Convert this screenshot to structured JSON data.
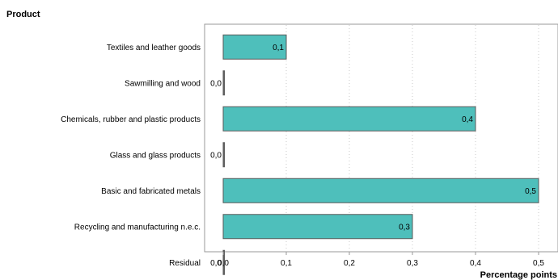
{
  "chart_data": {
    "type": "bar",
    "orientation": "horizontal",
    "y_title": "Product",
    "x_title": "Percentage points",
    "categories": [
      "Textiles and leather goods",
      "Sawmilling and wood",
      "Chemicals, rubber and plastic products",
      "Glass and glass products",
      "Basic and fabricated metals",
      "Recycling and manufacturing n.e.c.",
      "Residual"
    ],
    "values": [
      0.1,
      0.0,
      0.4,
      0.0,
      0.5,
      0.3,
      0.0
    ],
    "data_labels": [
      "0,1",
      "0,0",
      "0,4",
      "0,0",
      "0,5",
      "0,3",
      "0,0"
    ],
    "xlim": [
      -0.03,
      0.53
    ],
    "x_ticks": [
      0.0,
      0.1,
      0.2,
      0.3,
      0.4,
      0.5
    ],
    "x_tick_labels": [
      "0,0",
      "0,1",
      "0,2",
      "0,3",
      "0,4",
      "0,5"
    ],
    "grid": "vertical-dotted",
    "legend": "none",
    "colors": {
      "bar_fill": "#4ebfbb",
      "bar_stroke": "#5a5a5a",
      "grid": "#c8c8c8",
      "axis": "#999999"
    }
  }
}
